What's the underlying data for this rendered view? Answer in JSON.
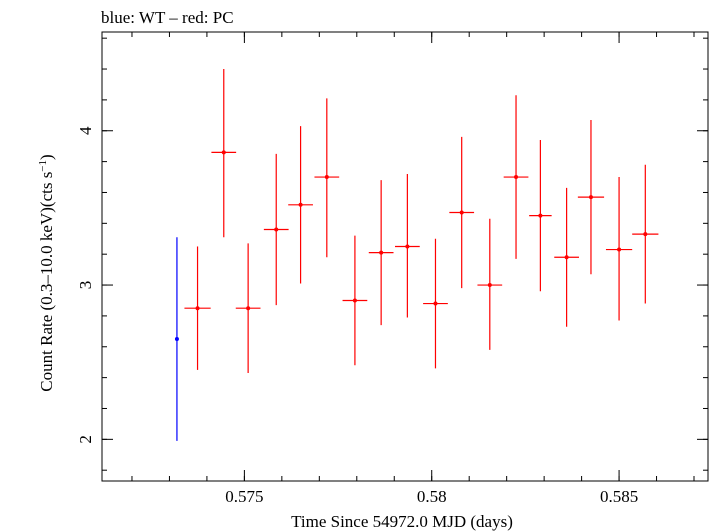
{
  "chart_data": {
    "type": "scatter",
    "title": "blue: WT – red: PC",
    "xlabel": "Time Since 54972.0 MJD (days)",
    "ylabel_main": "Count Rate (0.3–10.0 keV)(cts s",
    "ylabel_sup": "−1",
    "ylabel_close": ")",
    "xlim": [
      0.5712,
      0.5874
    ],
    "ylim": [
      1.73,
      4.64
    ],
    "x_ticks": [
      {
        "value": 0.575,
        "label": "0.575"
      },
      {
        "value": 0.58,
        "label": "0.58"
      },
      {
        "value": 0.585,
        "label": "0.585"
      }
    ],
    "x_minor_step": 0.001,
    "y_ticks": [
      {
        "value": 2,
        "label": "2"
      },
      {
        "value": 3,
        "label": "3"
      },
      {
        "value": 4,
        "label": "4"
      }
    ],
    "y_minor_step": 0.2,
    "series": [
      {
        "name": "WT",
        "color": "#0000ff",
        "points": [
          {
            "x": 0.5732,
            "xerr": 0.0,
            "y": 2.65,
            "yerr_lo": 0.66,
            "yerr_hi": 0.66
          }
        ]
      },
      {
        "name": "PC",
        "color": "#ff0000",
        "points": [
          {
            "x": 0.57375,
            "xerr": 0.00035,
            "y": 2.85,
            "yerr_lo": 0.4,
            "yerr_hi": 0.4
          },
          {
            "x": 0.57445,
            "xerr": 0.00033,
            "y": 3.86,
            "yerr_lo": 0.55,
            "yerr_hi": 0.54
          },
          {
            "x": 0.5751,
            "xerr": 0.00033,
            "y": 2.85,
            "yerr_lo": 0.42,
            "yerr_hi": 0.42
          },
          {
            "x": 0.57585,
            "xerr": 0.00033,
            "y": 3.36,
            "yerr_lo": 0.49,
            "yerr_hi": 0.49
          },
          {
            "x": 0.5765,
            "xerr": 0.00033,
            "y": 3.52,
            "yerr_lo": 0.51,
            "yerr_hi": 0.51
          },
          {
            "x": 0.5772,
            "xerr": 0.00033,
            "y": 3.7,
            "yerr_lo": 0.52,
            "yerr_hi": 0.51
          },
          {
            "x": 0.57795,
            "xerr": 0.00033,
            "y": 2.9,
            "yerr_lo": 0.42,
            "yerr_hi": 0.42
          },
          {
            "x": 0.57865,
            "xerr": 0.00033,
            "y": 3.21,
            "yerr_lo": 0.47,
            "yerr_hi": 0.47
          },
          {
            "x": 0.57935,
            "xerr": 0.00033,
            "y": 3.25,
            "yerr_lo": 0.46,
            "yerr_hi": 0.47
          },
          {
            "x": 0.5801,
            "xerr": 0.00033,
            "y": 2.88,
            "yerr_lo": 0.42,
            "yerr_hi": 0.42
          },
          {
            "x": 0.5808,
            "xerr": 0.00033,
            "y": 3.47,
            "yerr_lo": 0.49,
            "yerr_hi": 0.49
          },
          {
            "x": 0.58155,
            "xerr": 0.00033,
            "y": 3.0,
            "yerr_lo": 0.42,
            "yerr_hi": 0.43
          },
          {
            "x": 0.58225,
            "xerr": 0.00033,
            "y": 3.7,
            "yerr_lo": 0.53,
            "yerr_hi": 0.53
          },
          {
            "x": 0.5829,
            "xerr": 0.0003,
            "y": 3.45,
            "yerr_lo": 0.49,
            "yerr_hi": 0.49
          },
          {
            "x": 0.5836,
            "xerr": 0.00033,
            "y": 3.18,
            "yerr_lo": 0.45,
            "yerr_hi": 0.45
          },
          {
            "x": 0.58425,
            "xerr": 0.00035,
            "y": 3.57,
            "yerr_lo": 0.5,
            "yerr_hi": 0.5
          },
          {
            "x": 0.585,
            "xerr": 0.00035,
            "y": 3.23,
            "yerr_lo": 0.46,
            "yerr_hi": 0.47
          },
          {
            "x": 0.5857,
            "xerr": 0.00035,
            "y": 3.33,
            "yerr_lo": 0.45,
            "yerr_hi": 0.45
          }
        ]
      }
    ]
  }
}
